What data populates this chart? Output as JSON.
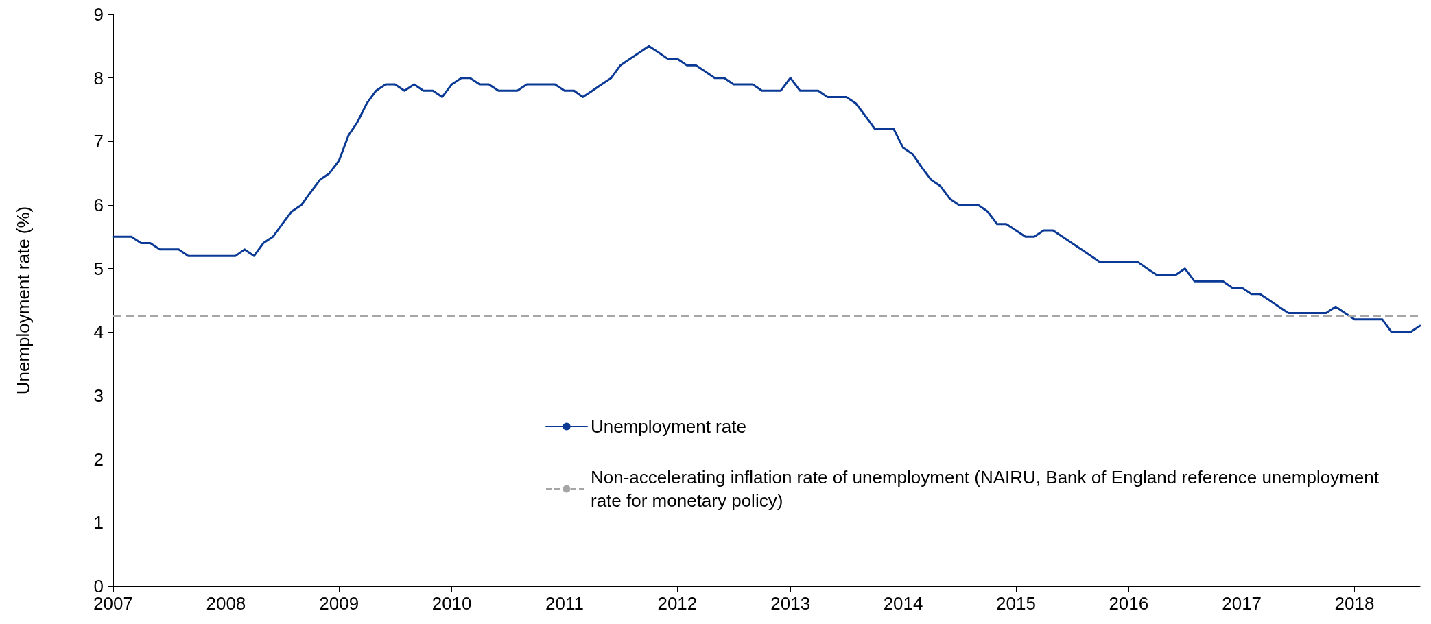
{
  "chart_data": {
    "type": "line",
    "ylabel": "Unemployment rate (%)",
    "x": [
      "2007-01",
      "2007-02",
      "2007-03",
      "2007-04",
      "2007-05",
      "2007-06",
      "2007-07",
      "2007-08",
      "2007-09",
      "2007-10",
      "2007-11",
      "2007-12",
      "2008-01",
      "2008-02",
      "2008-03",
      "2008-04",
      "2008-05",
      "2008-06",
      "2008-07",
      "2008-08",
      "2008-09",
      "2008-10",
      "2008-11",
      "2008-12",
      "2009-01",
      "2009-02",
      "2009-03",
      "2009-04",
      "2009-05",
      "2009-06",
      "2009-07",
      "2009-08",
      "2009-09",
      "2009-10",
      "2009-11",
      "2009-12",
      "2010-01",
      "2010-02",
      "2010-03",
      "2010-04",
      "2010-05",
      "2010-06",
      "2010-07",
      "2010-08",
      "2010-09",
      "2010-10",
      "2010-11",
      "2010-12",
      "2011-01",
      "2011-02",
      "2011-03",
      "2011-04",
      "2011-05",
      "2011-06",
      "2011-07",
      "2011-08",
      "2011-09",
      "2011-10",
      "2011-11",
      "2011-12",
      "2012-01",
      "2012-02",
      "2012-03",
      "2012-04",
      "2012-05",
      "2012-06",
      "2012-07",
      "2012-08",
      "2012-09",
      "2012-10",
      "2012-11",
      "2012-12",
      "2013-01",
      "2013-02",
      "2013-03",
      "2013-04",
      "2013-05",
      "2013-06",
      "2013-07",
      "2013-08",
      "2013-09",
      "2013-10",
      "2013-11",
      "2013-12",
      "2014-01",
      "2014-02",
      "2014-03",
      "2014-04",
      "2014-05",
      "2014-06",
      "2014-07",
      "2014-08",
      "2014-09",
      "2014-10",
      "2014-11",
      "2014-12",
      "2015-01",
      "2015-02",
      "2015-03",
      "2015-04",
      "2015-05",
      "2015-06",
      "2015-07",
      "2015-08",
      "2015-09",
      "2015-10",
      "2015-11",
      "2015-12",
      "2016-01",
      "2016-02",
      "2016-03",
      "2016-04",
      "2016-05",
      "2016-06",
      "2016-07",
      "2016-08",
      "2016-09",
      "2016-10",
      "2016-11",
      "2016-12",
      "2017-01",
      "2017-02",
      "2017-03",
      "2017-04",
      "2017-05",
      "2017-06",
      "2017-07",
      "2017-08",
      "2017-09",
      "2017-10",
      "2017-11",
      "2017-12",
      "2018-01",
      "2018-02",
      "2018-03",
      "2018-04",
      "2018-05",
      "2018-06",
      "2018-07",
      "2018-08"
    ],
    "series": [
      {
        "name": "Unemployment rate",
        "color": "#0a3a96",
        "values": [
          5.5,
          5.5,
          5.5,
          5.4,
          5.4,
          5.3,
          5.3,
          5.3,
          5.2,
          5.2,
          5.2,
          5.2,
          5.2,
          5.2,
          5.3,
          5.2,
          5.4,
          5.5,
          5.7,
          5.9,
          6.0,
          6.2,
          6.4,
          6.5,
          6.7,
          7.1,
          7.3,
          7.6,
          7.8,
          7.9,
          7.9,
          7.8,
          7.9,
          7.8,
          7.8,
          7.7,
          7.9,
          8.0,
          8.0,
          7.9,
          7.9,
          7.8,
          7.8,
          7.8,
          7.9,
          7.9,
          7.9,
          7.9,
          7.8,
          7.8,
          7.7,
          7.8,
          7.9,
          8.0,
          8.2,
          8.3,
          8.4,
          8.5,
          8.4,
          8.3,
          8.3,
          8.2,
          8.2,
          8.1,
          8.0,
          8.0,
          7.9,
          7.9,
          7.9,
          7.8,
          7.8,
          7.8,
          8.0,
          7.8,
          7.8,
          7.8,
          7.7,
          7.7,
          7.7,
          7.6,
          7.4,
          7.2,
          7.2,
          7.2,
          6.9,
          6.8,
          6.6,
          6.4,
          6.3,
          6.1,
          6.0,
          6.0,
          6.0,
          5.9,
          5.7,
          5.7,
          5.6,
          5.5,
          5.5,
          5.6,
          5.6,
          5.5,
          5.4,
          5.3,
          5.2,
          5.1,
          5.1,
          5.1,
          5.1,
          5.1,
          5.0,
          4.9,
          4.9,
          4.9,
          5.0,
          4.8,
          4.8,
          4.8,
          4.8,
          4.7,
          4.7,
          4.6,
          4.6,
          4.5,
          4.4,
          4.3,
          4.3,
          4.3,
          4.3,
          4.3,
          4.4,
          4.3,
          4.2,
          4.2,
          4.2,
          4.2,
          4.0,
          4.0,
          4.0,
          4.1
        ]
      }
    ],
    "ref_lines": [
      {
        "axis": "y",
        "value": 4.25,
        "label": "Non-accelerating inflation rate of unemployment (NAIRU, Bank of England reference unemployment rate for monetary policy)",
        "color": "#a6a6a6",
        "line_style": "dashed"
      }
    ],
    "xlim": [
      "2007-01",
      "2018-08"
    ],
    "xticks": [
      {
        "value": "2007",
        "label": "2007"
      },
      {
        "value": "2008",
        "label": "2008"
      },
      {
        "value": "2009",
        "label": "2009"
      },
      {
        "value": "2010",
        "label": "2010"
      },
      {
        "value": "2011",
        "label": "2011"
      },
      {
        "value": "2012",
        "label": "2012"
      },
      {
        "value": "2013",
        "label": "2013"
      },
      {
        "value": "2014",
        "label": "2014"
      },
      {
        "value": "2015",
        "label": "2015"
      },
      {
        "value": "2016",
        "label": "2016"
      },
      {
        "value": "2017",
        "label": "2017"
      },
      {
        "value": "2018",
        "label": "2018"
      }
    ],
    "ylim": [
      0,
      9
    ],
    "yticks": [
      0,
      1,
      2,
      3,
      4,
      5,
      6,
      7,
      8,
      9
    ],
    "grid": false,
    "legend": "bottom",
    "marker": "none",
    "line_style": "solid"
  }
}
